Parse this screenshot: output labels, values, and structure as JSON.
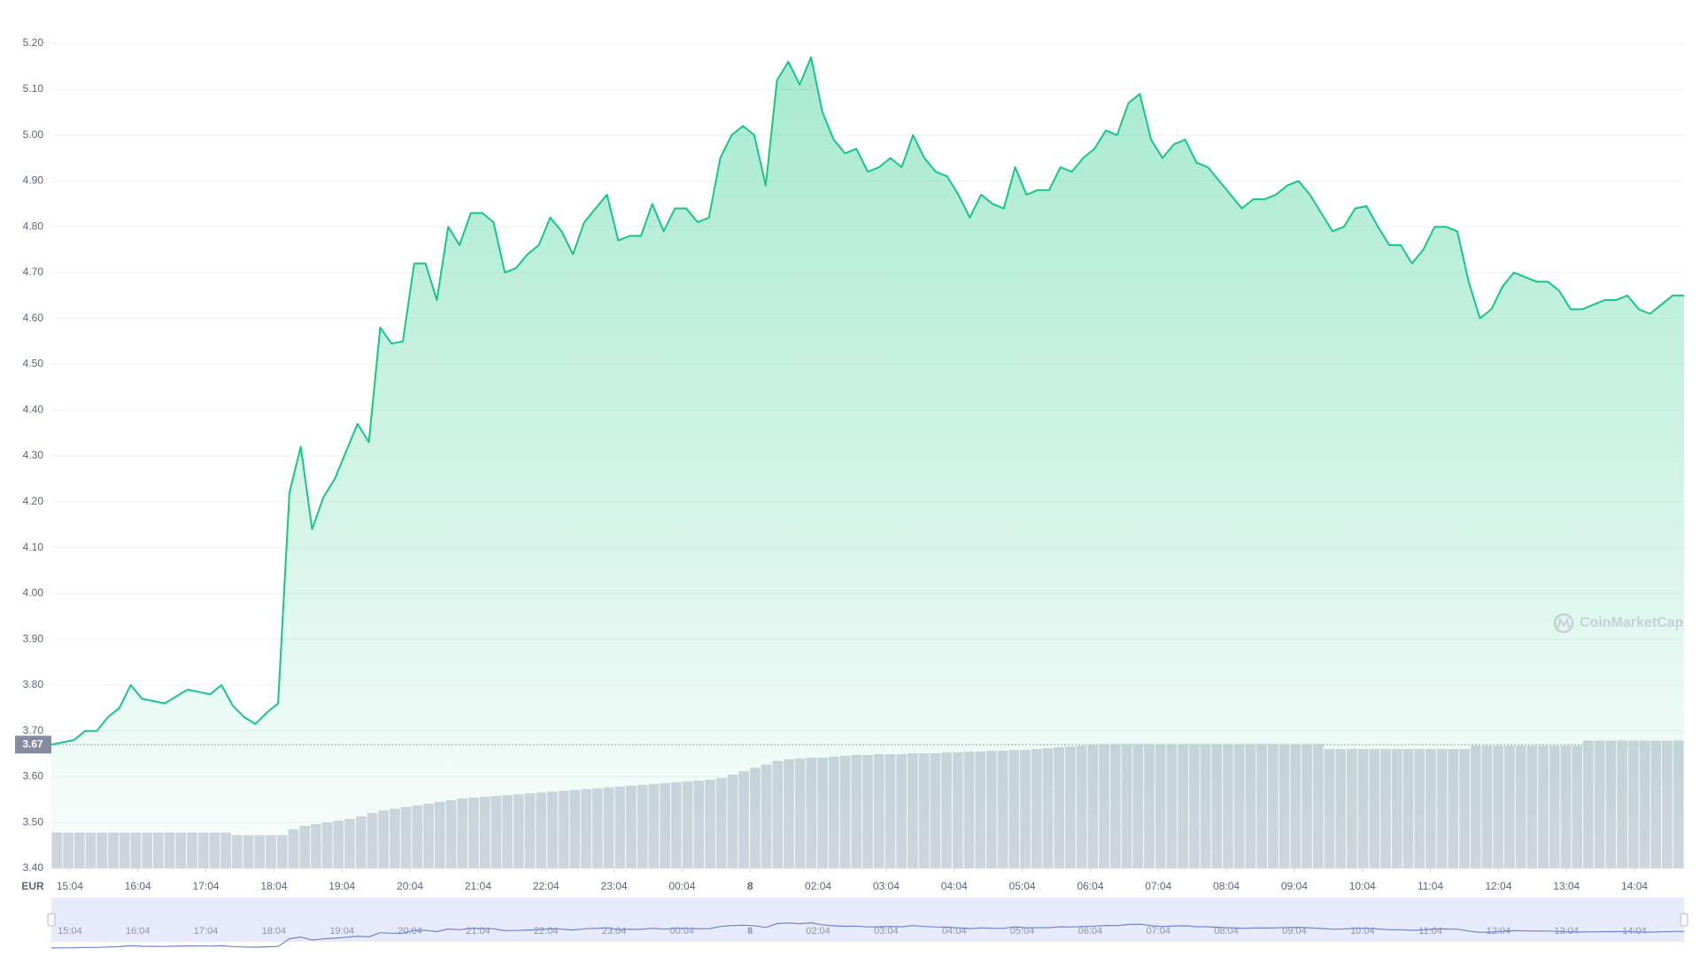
{
  "chart_data": {
    "type": "line",
    "currency": "EUR",
    "watermark": "CoinMarketCap",
    "reference_price": 3.67,
    "ylim": [
      3.4,
      5.26
    ],
    "yticks": [
      {
        "value": 3.4,
        "label": "3.40"
      },
      {
        "value": 3.5,
        "label": "3.50"
      },
      {
        "value": 3.6,
        "label": "3.60"
      },
      {
        "value": 3.7,
        "label": "3.70"
      },
      {
        "value": 3.8,
        "label": "3.80"
      },
      {
        "value": 3.9,
        "label": "3.90"
      },
      {
        "value": 4.0,
        "label": "4.00"
      },
      {
        "value": 4.1,
        "label": "4.10"
      },
      {
        "value": 4.2,
        "label": "4.20"
      },
      {
        "value": 4.3,
        "label": "4.30"
      },
      {
        "value": 4.4,
        "label": "4.40"
      },
      {
        "value": 4.5,
        "label": "4.50"
      },
      {
        "value": 4.6,
        "label": "4.60"
      },
      {
        "value": 4.7,
        "label": "4.70"
      },
      {
        "value": 4.8,
        "label": "4.80"
      },
      {
        "value": 4.9,
        "label": "4.90"
      },
      {
        "value": 5.0,
        "label": "5.00"
      },
      {
        "value": 5.1,
        "label": "5.10"
      },
      {
        "value": 5.2,
        "label": "5.20"
      }
    ],
    "xlim": [
      0,
      144
    ],
    "xticks": [
      {
        "value": 1.63,
        "label": "15:04"
      },
      {
        "value": 7.63,
        "label": "16:04"
      },
      {
        "value": 13.63,
        "label": "17:04"
      },
      {
        "value": 19.63,
        "label": "18:04"
      },
      {
        "value": 25.63,
        "label": "19:04"
      },
      {
        "value": 31.63,
        "label": "20:04"
      },
      {
        "value": 37.63,
        "label": "21:04"
      },
      {
        "value": 43.63,
        "label": "22:04"
      },
      {
        "value": 49.63,
        "label": "23:04"
      },
      {
        "value": 55.63,
        "label": "00:04"
      },
      {
        "value": 61.63,
        "label": "8"
      },
      {
        "value": 67.63,
        "label": "02:04"
      },
      {
        "value": 73.63,
        "label": "03:04"
      },
      {
        "value": 79.63,
        "label": "04:04"
      },
      {
        "value": 85.63,
        "label": "05:04"
      },
      {
        "value": 91.63,
        "label": "06:04"
      },
      {
        "value": 97.63,
        "label": "07:04"
      },
      {
        "value": 103.63,
        "label": "08:04"
      },
      {
        "value": 109.63,
        "label": "09:04"
      },
      {
        "value": 115.63,
        "label": "10:04"
      },
      {
        "value": 121.63,
        "label": "11:04"
      },
      {
        "value": 127.63,
        "label": "12:04"
      },
      {
        "value": 133.63,
        "label": "13:04"
      },
      {
        "value": 139.63,
        "label": "14:04"
      }
    ],
    "grid": true,
    "series": [
      {
        "color": "#16c784",
        "values": [
          3.67,
          3.675,
          3.68,
          3.7,
          3.7,
          3.73,
          3.75,
          3.8,
          3.77,
          3.765,
          3.76,
          3.775,
          3.79,
          3.785,
          3.78,
          3.8,
          3.755,
          3.73,
          3.715,
          3.74,
          3.76,
          4.22,
          4.32,
          4.14,
          4.21,
          4.25,
          4.31,
          4.37,
          4.33,
          4.58,
          4.545,
          4.55,
          4.72,
          4.72,
          4.64,
          4.8,
          4.76,
          4.83,
          4.83,
          4.81,
          4.7,
          4.71,
          4.74,
          4.76,
          4.82,
          4.79,
          4.74,
          4.81,
          4.84,
          4.87,
          4.77,
          4.78,
          4.78,
          4.85,
          4.79,
          4.84,
          4.84,
          4.81,
          4.82,
          4.95,
          5.0,
          5.02,
          5.0,
          4.89,
          5.12,
          5.16,
          5.11,
          5.17,
          5.05,
          4.99,
          4.96,
          4.97,
          4.92,
          4.93,
          4.95,
          4.93,
          5.0,
          4.95,
          4.92,
          4.91,
          4.87,
          4.82,
          4.87,
          4.85,
          4.84,
          4.93,
          4.87,
          4.88,
          4.88,
          4.93,
          4.92,
          4.95,
          4.97,
          5.01,
          5.0,
          5.07,
          5.09,
          4.99,
          4.95,
          4.98,
          4.99,
          4.94,
          4.93,
          4.9,
          4.87,
          4.84,
          4.86,
          4.86,
          4.87,
          4.89,
          4.9,
          4.87,
          4.83,
          4.79,
          4.8,
          4.84,
          4.845,
          4.8,
          4.76,
          4.76,
          4.72,
          4.75,
          4.8,
          4.8,
          4.79,
          4.68,
          4.6,
          4.62,
          4.67,
          4.7,
          4.69,
          4.68,
          4.68,
          4.66,
          4.62,
          4.62,
          4.63,
          4.64,
          4.64,
          4.65,
          4.62,
          4.61,
          4.63,
          4.65,
          4.65
        ]
      },
      {
        "type": "bar",
        "axis": "y2",
        "color": "#d1d5e0",
        "values": [
          4.2,
          4.2,
          4.2,
          4.2,
          4.2,
          4.2,
          4.2,
          4.2,
          4.2,
          4.2,
          4.2,
          4.2,
          4.2,
          4.2,
          4.2,
          4.2,
          3.9,
          3.9,
          3.9,
          3.9,
          3.9,
          4.6,
          5.0,
          5.2,
          5.4,
          5.6,
          5.8,
          6.1,
          6.5,
          6.8,
          7.0,
          7.2,
          7.4,
          7.6,
          7.8,
          8.0,
          8.2,
          8.3,
          8.4,
          8.5,
          8.6,
          8.7,
          8.8,
          8.9,
          9.0,
          9.1,
          9.2,
          9.3,
          9.4,
          9.5,
          9.6,
          9.7,
          9.8,
          9.9,
          10.0,
          10.1,
          10.2,
          10.3,
          10.4,
          10.6,
          11.0,
          11.4,
          11.8,
          12.2,
          12.6,
          12.8,
          12.9,
          13.0,
          13.0,
          13.1,
          13.2,
          13.3,
          13.3,
          13.4,
          13.4,
          13.4,
          13.5,
          13.5,
          13.5,
          13.6,
          13.6,
          13.7,
          13.7,
          13.8,
          13.8,
          13.9,
          13.9,
          14.0,
          14.1,
          14.2,
          14.3,
          14.4,
          14.5,
          14.6,
          14.6,
          14.6,
          14.6,
          14.6,
          14.6,
          14.6,
          14.6,
          14.6,
          14.6,
          14.6,
          14.6,
          14.6,
          14.6,
          14.6,
          14.6,
          14.6,
          14.6,
          14.6,
          14.6,
          14.0,
          14.0,
          14.0,
          14.0,
          14.0,
          14.0,
          14.0,
          14.0,
          14.0,
          14.0,
          14.0,
          14.0,
          14.0,
          14.4,
          14.4,
          14.4,
          14.4,
          14.4,
          14.4,
          14.4,
          14.4,
          14.4,
          14.4,
          15.0,
          15.0,
          15.0,
          15.0,
          15.0,
          15.0,
          15.0,
          15.0,
          15.0
        ]
      }
    ],
    "y2lim": [
      0,
      100
    ]
  }
}
